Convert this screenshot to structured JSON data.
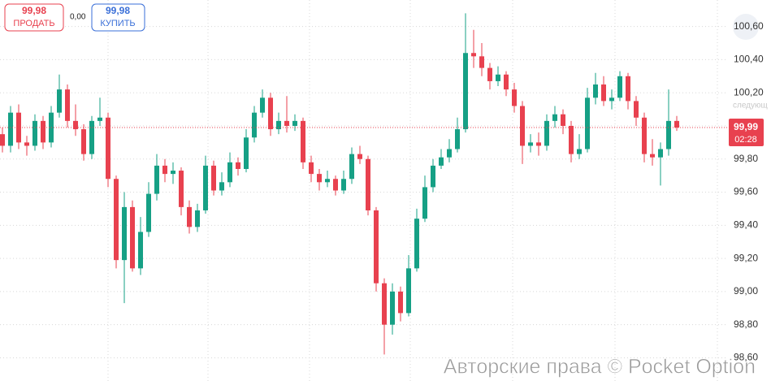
{
  "chart_data": {
    "type": "candlestick",
    "up_color": "#16a085",
    "down_color": "#e8414f",
    "grid": true,
    "ylim": [
      98.46,
      100.76
    ],
    "yticks": [
      {
        "value": 100.6,
        "label": "100,60"
      },
      {
        "value": 100.4,
        "label": "100,40"
      },
      {
        "value": 100.2,
        "label": "100,20"
      },
      {
        "value": 100.0,
        "label": "100,00"
      },
      {
        "value": 99.8,
        "label": "99,80"
      },
      {
        "value": 99.6,
        "label": "99,60"
      },
      {
        "value": 99.4,
        "label": "99,40"
      },
      {
        "value": 99.2,
        "label": "99,20"
      },
      {
        "value": 99.0,
        "label": "99,00"
      },
      {
        "value": 98.8,
        "label": "98,80"
      },
      {
        "value": 98.6,
        "label": "98,60"
      }
    ],
    "series": [
      {
        "open": [
          99.95,
          99.88,
          100.08,
          99.9,
          99.88,
          100.03,
          99.9,
          100.08,
          100.22,
          100.03,
          99.98,
          99.83,
          100.03,
          100.05,
          99.68,
          99.19,
          99.51,
          99.14,
          99.36,
          99.59,
          99.76,
          99.71,
          99.73,
          99.51,
          99.39,
          99.49,
          99.76,
          99.61,
          99.66,
          99.78,
          99.74,
          99.93,
          100.08,
          100.17,
          99.98,
          100.03,
          100.0,
          100.03,
          99.78,
          99.71,
          99.66,
          99.68,
          99.61,
          99.68,
          99.83,
          99.8,
          99.49,
          99.05,
          98.8,
          99.0,
          98.87,
          99.14,
          99.44,
          99.63,
          99.76,
          99.81,
          99.86,
          99.98,
          100.44,
          100.42,
          100.35,
          100.27,
          100.31,
          100.22,
          100.12,
          99.88,
          99.9,
          99.88,
          100.03,
          100.07,
          100.0,
          99.83,
          99.86,
          100.17,
          100.25,
          100.15,
          100.17,
          100.3,
          100.15,
          100.05,
          99.83,
          99.81,
          99.86,
          100.03
        ],
        "high": [
          99.99,
          100.12,
          100.13,
          99.94,
          100.07,
          100.06,
          100.12,
          100.31,
          100.25,
          100.13,
          100.01,
          100.06,
          100.17,
          100.08,
          99.7,
          99.6,
          99.55,
          99.45,
          99.66,
          99.83,
          99.8,
          99.78,
          99.75,
          99.55,
          99.53,
          99.82,
          99.79,
          99.72,
          99.84,
          99.81,
          99.98,
          100.12,
          100.22,
          100.2,
          100.08,
          100.18,
          100.07,
          100.05,
          99.82,
          99.74,
          99.73,
          99.7,
          99.73,
          99.87,
          99.88,
          99.82,
          99.51,
          99.08,
          99.05,
          99.03,
          99.22,
          99.5,
          99.7,
          99.8,
          99.86,
          99.92,
          100.05,
          100.68,
          100.58,
          100.5,
          100.38,
          100.36,
          100.33,
          100.26,
          100.15,
          99.95,
          99.96,
          100.07,
          100.12,
          100.1,
          100.03,
          99.95,
          100.23,
          100.32,
          100.3,
          100.22,
          100.33,
          100.32,
          100.18,
          100.08,
          99.92,
          99.9,
          100.22,
          100.06
        ],
        "low": [
          99.84,
          99.84,
          99.86,
          99.82,
          99.85,
          99.86,
          99.87,
          100.05,
          99.99,
          99.94,
          99.79,
          99.8,
          100.0,
          99.63,
          99.14,
          98.93,
          99.12,
          99.1,
          99.33,
          99.55,
          99.66,
          99.65,
          99.46,
          99.35,
          99.36,
          99.47,
          99.58,
          99.58,
          99.63,
          99.7,
          99.72,
          99.9,
          100.05,
          99.94,
          99.95,
          99.96,
          99.97,
          99.74,
          99.66,
          99.61,
          99.63,
          99.58,
          99.59,
          99.65,
          99.77,
          99.46,
          99.0,
          98.62,
          98.74,
          98.82,
          98.85,
          99.12,
          99.42,
          99.6,
          99.74,
          99.78,
          99.84,
          99.96,
          100.35,
          100.3,
          100.22,
          100.24,
          100.18,
          100.08,
          99.77,
          99.84,
          99.82,
          99.85,
          99.99,
          99.95,
          99.78,
          99.8,
          99.84,
          100.13,
          100.12,
          100.1,
          100.15,
          100.1,
          100.0,
          99.78,
          99.76,
          99.64,
          99.82,
          99.97
        ],
        "close": [
          99.88,
          100.08,
          99.9,
          99.88,
          100.03,
          99.9,
          100.08,
          100.22,
          100.03,
          99.98,
          99.83,
          100.03,
          100.05,
          99.68,
          99.19,
          99.51,
          99.14,
          99.36,
          99.59,
          99.76,
          99.71,
          99.73,
          99.51,
          99.39,
          99.49,
          99.76,
          99.61,
          99.66,
          99.78,
          99.74,
          99.93,
          100.08,
          100.17,
          99.98,
          100.03,
          100.0,
          100.03,
          99.78,
          99.71,
          99.66,
          99.68,
          99.61,
          99.68,
          99.83,
          99.8,
          99.49,
          99.05,
          98.8,
          99.0,
          98.87,
          99.14,
          99.44,
          99.63,
          99.76,
          99.81,
          99.86,
          99.98,
          100.44,
          100.42,
          100.35,
          100.27,
          100.31,
          100.22,
          100.12,
          99.88,
          99.9,
          99.88,
          100.03,
          100.07,
          100.0,
          99.83,
          99.86,
          100.17,
          100.25,
          100.15,
          100.17,
          100.3,
          100.15,
          100.05,
          99.83,
          99.81,
          99.86,
          100.03,
          99.99
        ]
      }
    ],
    "last_price": {
      "value": 99.99,
      "label": "99,99"
    },
    "timer": "02:28",
    "overlay_text": "следующ"
  },
  "trade_panel": {
    "sell_price": "99,98",
    "sell_label": "ПРОДАТЬ",
    "spread": "0,00",
    "buy_price": "99,98",
    "buy_label": "КУПИТЬ"
  },
  "watermark": "Авторские права © Pocket Option"
}
